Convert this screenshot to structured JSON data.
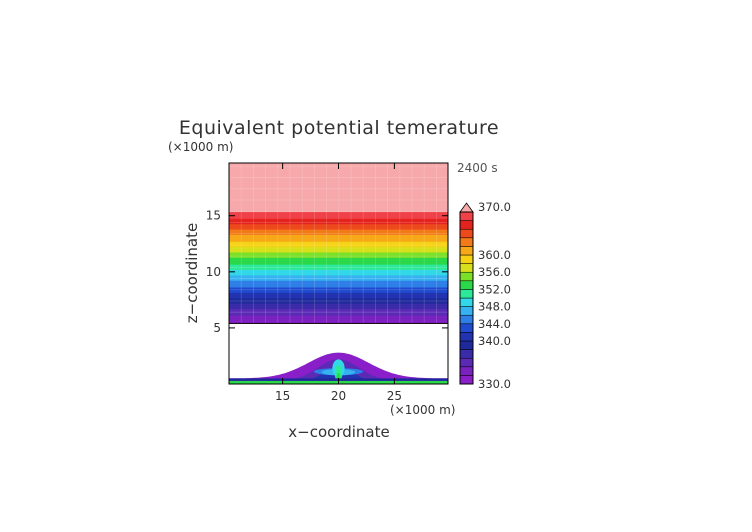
{
  "chart_data": {
    "type": "heatmap",
    "title": "Equivalent potential temerature",
    "time_label": "2400 s",
    "xlabel": "x−coordinate",
    "ylabel": "z−coordinate",
    "x_unit": "(×1000 m)",
    "y_unit": "(×1000 m)",
    "xlim": [
      10.2,
      29.8
    ],
    "ylim": [
      0,
      19.7
    ],
    "x_ticks": [
      "15",
      "20",
      "25"
    ],
    "x_tick_values": [
      15,
      20,
      25
    ],
    "y_ticks": [
      "5",
      "10",
      "15"
    ],
    "y_tick_values": [
      5,
      10,
      15
    ],
    "colorbar": {
      "min": 330.0,
      "max": 370.0,
      "extend": "max",
      "tick_labels": [
        "370.0",
        "360.0",
        "356.0",
        "352.0",
        "348.0",
        "344.0",
        "340.0",
        "330.0"
      ],
      "tick_values": [
        370,
        360,
        356,
        352,
        348,
        344,
        340,
        330
      ],
      "levels": [
        330,
        332,
        334,
        336,
        338,
        340,
        342,
        344,
        346,
        348,
        350,
        352,
        354,
        356,
        358,
        360,
        362,
        364,
        366,
        368,
        370
      ],
      "colors": [
        "#8a1ec8",
        "#7a22c0",
        "#5a2ab4",
        "#3a2ca8",
        "#1e2a9c",
        "#2233b0",
        "#1f4bd0",
        "#2f7fe8",
        "#36b2f0",
        "#33d8e8",
        "#2ee89a",
        "#2ad84a",
        "#7ae028",
        "#d8e01c",
        "#f6d214",
        "#f6a818",
        "#f27a18",
        "#ec4a1c",
        "#e4221e",
        "#f04048",
        "#f07a7e"
      ],
      "extend_color": "#f6a8aa"
    },
    "field": {
      "description_levels_by_height_km": [
        {
          "z": [
            0,
            5.4
          ],
          "note": "data-void region except mountain-shaped anomaly near x=20"
        },
        {
          "z": [
            5.4,
            15.3
          ],
          "theta_e": [
            331,
            370
          ]
        },
        {
          "z": [
            15.3,
            19.7
          ],
          "theta_e": 370
        }
      ]
    }
  }
}
